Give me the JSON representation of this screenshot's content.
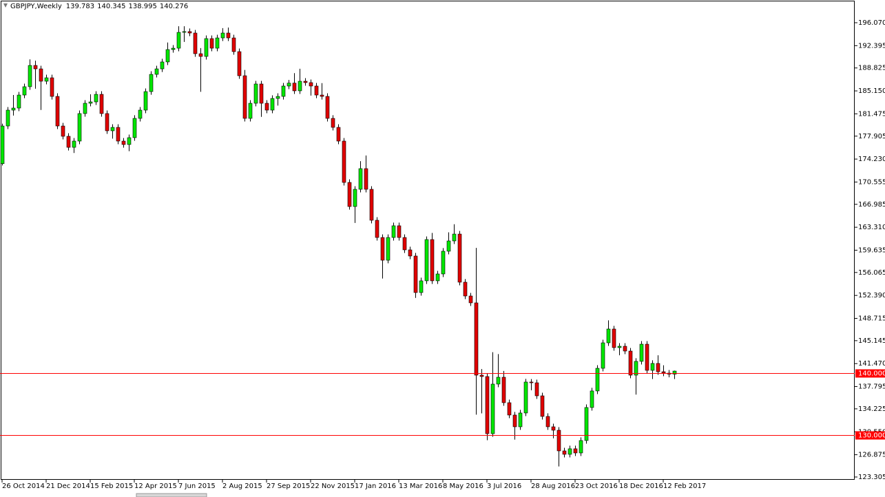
{
  "chart_data": {
    "type": "candlestick",
    "title": "GBPJPY,Weekly",
    "up_color": "#00e600",
    "down_color": "#e00000",
    "wick_color": "#000000",
    "categories": [
      "26 Oct 2014",
      null,
      null,
      null,
      null,
      null,
      null,
      null,
      "21 Dec 2014",
      null,
      null,
      null,
      null,
      null,
      null,
      null,
      "15 Feb 2015",
      null,
      null,
      null,
      null,
      null,
      null,
      null,
      "12 Apr 2015",
      null,
      null,
      null,
      null,
      null,
      null,
      null,
      "7 Jun 2015",
      null,
      null,
      null,
      null,
      null,
      null,
      null,
      "2 Aug 2015",
      null,
      null,
      null,
      null,
      null,
      null,
      null,
      "27 Sep 2015",
      null,
      null,
      null,
      null,
      null,
      null,
      null,
      "22 Nov 2015",
      null,
      null,
      null,
      null,
      null,
      null,
      null,
      "17 Jan 2016",
      null,
      null,
      null,
      null,
      null,
      null,
      null,
      "13 Mar 2016",
      null,
      null,
      null,
      null,
      null,
      null,
      null,
      "8 May 2016",
      null,
      null,
      null,
      null,
      null,
      null,
      null,
      "3 Jul 2016",
      null,
      null,
      null,
      null,
      null,
      null,
      null,
      "28 Aug 2016",
      null,
      null,
      null,
      null,
      null,
      null,
      null,
      "23 Oct 2016",
      null,
      null,
      null,
      null,
      null,
      null,
      null,
      "18 Dec 2016",
      null,
      null,
      null,
      null,
      null,
      null,
      null,
      "12 Feb 2017",
      null,
      null
    ],
    "open": [
      173.5,
      179.53,
      182.07,
      182.4,
      184.49,
      185.82,
      189.23,
      188.68,
      186.7,
      187.25,
      184.27,
      179.53,
      177.88,
      176.11,
      177.11,
      181.52,
      183.17,
      183.39,
      184.6,
      181.52,
      178.76,
      179.31,
      177.11,
      176.56,
      177.66,
      180.75,
      182.07,
      185.04,
      187.8,
      188.68,
      189.79,
      191.77,
      191.99,
      194.53,
      194.65,
      194.42,
      191.11,
      190.67,
      193.53,
      191.99,
      193.64,
      194.42,
      193.64,
      191.44,
      187.58,
      180.75,
      183.17,
      186.26,
      183.17,
      182.07,
      183.94,
      184.27,
      185.93,
      186.4,
      185.16,
      186.7,
      186.48,
      185.93,
      184.49,
      184.27,
      180.75,
      179.31,
      177.11,
      170.49,
      166.63,
      169.39,
      172.7,
      169.39,
      164.43,
      161.67,
      158.03,
      161.67,
      163.55,
      161.67,
      159.69,
      158.7,
      152.85,
      154.73,
      161.34,
      154.73,
      155.83,
      159.47,
      161.12,
      162.22,
      154.51,
      152.3,
      151.2,
      139.62,
      139.4,
      130.25,
      138.19,
      139.29,
      135.21,
      133.23,
      131.35,
      133.56,
      138.52,
      138.4,
      136.31,
      133.01,
      131.35,
      130.8,
      127.49,
      126.94,
      127.83,
      127.16,
      129.15,
      134.44,
      137.09,
      140.72,
      144.8,
      147.01,
      144.03,
      144.25,
      143.48,
      139.62,
      141.83,
      144.58,
      140.39,
      141.5,
      140.17,
      139.95,
      139.783
    ],
    "high": [
      179.9,
      182.57,
      184.5,
      184.99,
      186.32,
      190.2,
      190.0,
      189.18,
      187.75,
      187.75,
      184.77,
      180.03,
      178.38,
      177.61,
      182.02,
      183.67,
      184.6,
      185.1,
      185.1,
      182.02,
      179.81,
      179.81,
      177.61,
      178.16,
      181.25,
      182.57,
      185.54,
      188.3,
      189.18,
      190.29,
      192.9,
      192.49,
      195.5,
      195.5,
      195.15,
      194.92,
      192.0,
      194.03,
      194.03,
      194.14,
      195.2,
      195.3,
      194.14,
      191.94,
      188.5,
      183.67,
      186.76,
      186.76,
      183.67,
      184.44,
      184.77,
      186.43,
      186.9,
      188.0,
      188.7,
      187.2,
      186.98,
      186.43,
      186.4,
      184.77,
      181.25,
      179.81,
      177.61,
      170.99,
      169.89,
      173.9,
      174.8,
      169.89,
      164.93,
      162.17,
      162.17,
      164.05,
      164.05,
      162.17,
      160.19,
      159.2,
      155.23,
      161.84,
      162.4,
      156.33,
      159.97,
      162.5,
      163.8,
      162.72,
      155.01,
      152.8,
      160.0,
      140.6,
      139.9,
      143.3,
      143.0,
      140.3,
      135.71,
      133.73,
      134.06,
      139.02,
      139.0,
      138.9,
      136.81,
      133.51,
      131.85,
      131.3,
      127.99,
      128.33,
      128.33,
      129.65,
      134.94,
      137.59,
      141.22,
      145.3,
      148.4,
      147.51,
      144.75,
      144.75,
      143.98,
      142.33,
      145.08,
      145.08,
      142.0,
      142.8,
      141.2,
      140.45,
      140.345
    ],
    "low": [
      173.2,
      179.03,
      181.2,
      181.9,
      183.99,
      185.32,
      185.5,
      182.1,
      186.2,
      183.77,
      179.03,
      177.38,
      175.61,
      175.2,
      176.61,
      181.02,
      182.67,
      182.89,
      181.02,
      178.26,
      177.5,
      176.61,
      176.06,
      175.5,
      177.16,
      180.25,
      181.57,
      184.54,
      187.3,
      188.18,
      189.29,
      191.27,
      191.49,
      193.0,
      193.92,
      190.61,
      185.0,
      190.17,
      191.49,
      191.49,
      193.14,
      193.14,
      190.94,
      187.08,
      180.25,
      180.25,
      182.67,
      181.0,
      181.57,
      181.57,
      182.8,
      183.77,
      185.43,
      184.66,
      184.66,
      185.98,
      184.4,
      183.99,
      183.77,
      180.25,
      178.81,
      176.61,
      169.99,
      166.13,
      164.0,
      168.89,
      168.89,
      163.93,
      161.17,
      155.1,
      157.53,
      161.17,
      161.17,
      159.19,
      158.2,
      152.0,
      152.35,
      154.23,
      154.23,
      154.23,
      155.33,
      158.97,
      160.62,
      154.01,
      151.8,
      150.7,
      133.3,
      133.5,
      129.2,
      129.75,
      137.69,
      134.71,
      132.73,
      129.3,
      130.85,
      133.06,
      137.2,
      135.81,
      132.51,
      130.85,
      129.5,
      125.0,
      126.44,
      126.44,
      126.66,
      126.66,
      128.65,
      133.94,
      136.59,
      140.22,
      144.3,
      143.53,
      142.8,
      142.98,
      139.12,
      136.5,
      141.33,
      139.89,
      139.0,
      139.67,
      139.45,
      139.28,
      138.995
    ],
    "close": [
      179.53,
      182.07,
      182.4,
      184.49,
      185.82,
      189.23,
      188.68,
      186.7,
      187.25,
      184.27,
      179.53,
      177.88,
      176.11,
      177.11,
      181.52,
      183.17,
      183.39,
      184.6,
      181.52,
      178.76,
      179.31,
      177.11,
      176.56,
      177.66,
      180.75,
      182.07,
      185.04,
      187.8,
      188.68,
      189.79,
      191.77,
      191.99,
      194.53,
      194.65,
      194.42,
      191.11,
      190.67,
      193.53,
      191.99,
      193.64,
      194.42,
      193.64,
      191.44,
      187.58,
      180.75,
      183.17,
      186.26,
      183.17,
      182.07,
      183.94,
      184.27,
      185.93,
      186.4,
      185.16,
      186.7,
      186.48,
      185.93,
      184.49,
      184.27,
      180.75,
      179.31,
      177.11,
      170.49,
      166.63,
      169.39,
      172.7,
      169.39,
      164.43,
      161.67,
      158.03,
      161.67,
      163.55,
      161.67,
      159.69,
      158.7,
      152.85,
      154.73,
      161.34,
      154.73,
      155.83,
      159.47,
      161.12,
      162.22,
      154.51,
      152.3,
      151.2,
      139.62,
      139.4,
      130.25,
      138.19,
      139.29,
      135.21,
      133.23,
      131.35,
      133.56,
      138.52,
      138.4,
      136.31,
      133.01,
      131.35,
      130.8,
      127.49,
      126.94,
      127.83,
      127.16,
      129.15,
      134.44,
      137.09,
      140.72,
      144.8,
      147.01,
      144.03,
      144.25,
      143.48,
      139.62,
      141.83,
      144.58,
      140.39,
      141.5,
      140.17,
      139.95,
      139.78,
      140.276
    ],
    "ylim": [
      122.86,
      199.71
    ],
    "yticks": [
      {
        "value": 196.07,
        "label": "196.070"
      },
      {
        "value": 192.395,
        "label": "192.395"
      },
      {
        "value": 188.825,
        "label": "188.825"
      },
      {
        "value": 185.15,
        "label": "185.150"
      },
      {
        "value": 181.475,
        "label": "181.475"
      },
      {
        "value": 177.905,
        "label": "177.905"
      },
      {
        "value": 174.23,
        "label": "174.230"
      },
      {
        "value": 170.555,
        "label": "170.555"
      },
      {
        "value": 166.985,
        "label": "166.985"
      },
      {
        "value": 163.31,
        "label": "163.310"
      },
      {
        "value": 159.635,
        "label": "159.635"
      },
      {
        "value": 156.065,
        "label": "156.065"
      },
      {
        "value": 152.39,
        "label": "152.390"
      },
      {
        "value": 148.715,
        "label": "148.715"
      },
      {
        "value": 145.145,
        "label": "145.145"
      },
      {
        "value": 141.47,
        "label": "141.470"
      },
      {
        "value": 137.795,
        "label": "137.795"
      },
      {
        "value": 134.225,
        "label": "134.225"
      },
      {
        "value": 130.55,
        "label": "130.550"
      },
      {
        "value": 126.875,
        "label": "126.875"
      },
      {
        "value": 123.305,
        "label": "123.305"
      }
    ],
    "hlines": [
      {
        "value": 140,
        "label": "140.000",
        "color": "#ff0000"
      },
      {
        "value": 130,
        "label": "130.000",
        "color": "#ff0000"
      }
    ]
  }
}
